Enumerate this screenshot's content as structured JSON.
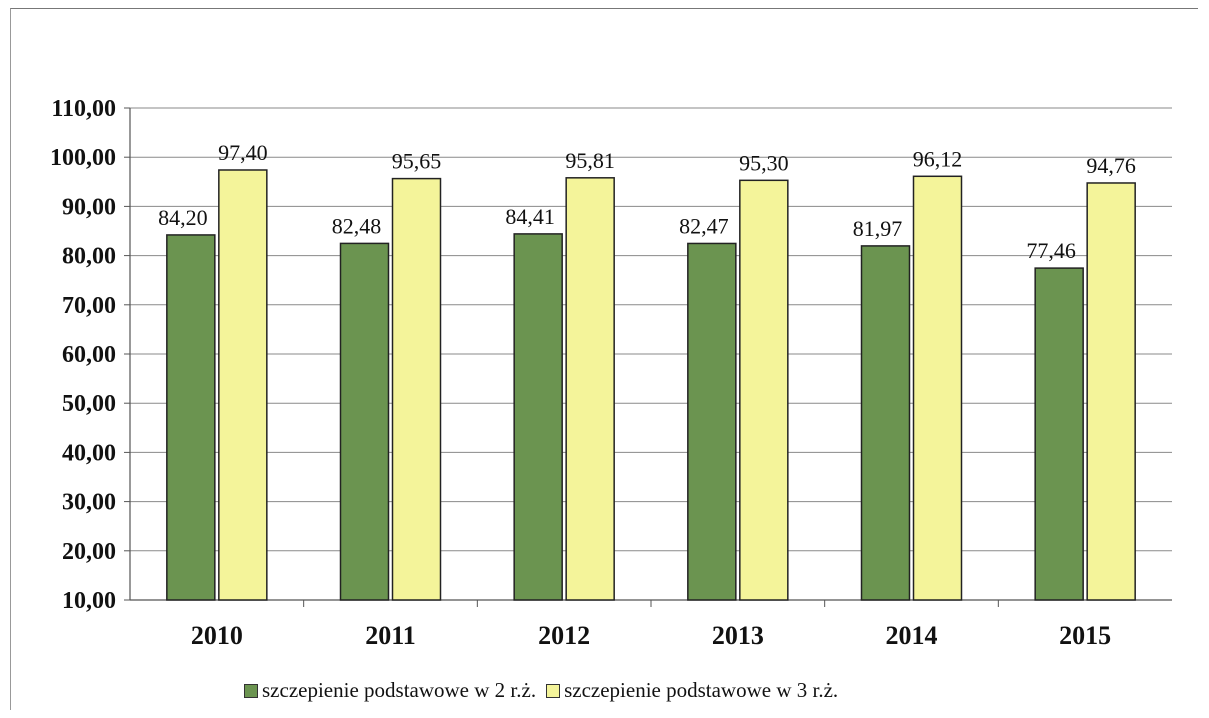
{
  "chart_data": {
    "type": "bar",
    "categories": [
      "2010",
      "2011",
      "2012",
      "2013",
      "2014",
      "2015"
    ],
    "series": [
      {
        "name": "szczepienie podstawowe w 2 r.ż.",
        "values": [
          84.2,
          82.48,
          84.41,
          82.47,
          81.97,
          77.46
        ],
        "labels": [
          "84,20",
          "82,48",
          "84,41",
          "82,47",
          "81,97",
          "77,46"
        ],
        "color": "#6b9450"
      },
      {
        "name": "szczepienie podstawowe w 3 r.ż.",
        "values": [
          97.4,
          95.65,
          95.81,
          95.3,
          96.12,
          94.76
        ],
        "labels": [
          "97,40",
          "95,65",
          "95,81",
          "95,30",
          "96,12",
          "94,76"
        ],
        "color": "#f4f49a"
      }
    ],
    "ylim": [
      10,
      110
    ],
    "yticks": [
      "10,00",
      "20,00",
      "30,00",
      "40,00",
      "50,00",
      "60,00",
      "70,00",
      "80,00",
      "90,00",
      "100,00",
      "110,00"
    ],
    "grid": true,
    "legend_position": "bottom"
  }
}
